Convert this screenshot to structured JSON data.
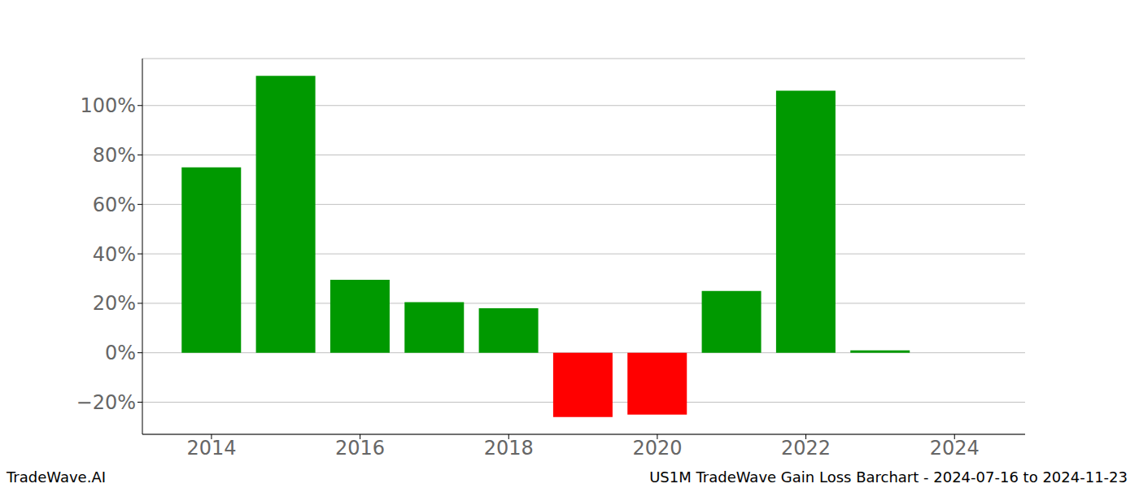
{
  "chart_data": {
    "type": "bar",
    "title": "US1M TradeWave Gain Loss Barchart - 2024-07-16 to 2024-11-23",
    "annotations": [
      "TradeWave.AI"
    ],
    "x": [
      2014,
      2015,
      2016,
      2017,
      2018,
      2019,
      2020,
      2021,
      2022,
      2023
    ],
    "values": [
      75,
      112,
      29.5,
      20.5,
      18,
      -26,
      -25,
      25,
      106,
      1
    ],
    "colors": [
      "#009900",
      "#009900",
      "#009900",
      "#009900",
      "#009900",
      "#ff0000",
      "#ff0000",
      "#009900",
      "#009900",
      "#009900"
    ],
    "xlim": [
      2013.07,
      2024.95
    ],
    "xticks": [
      2014,
      2016,
      2018,
      2020,
      2022,
      2024
    ],
    "ylim": [
      -33,
      119
    ],
    "yticks": [
      {
        "value": -20,
        "label": "−20%"
      },
      {
        "value": 0,
        "label": "0%"
      },
      {
        "value": 20,
        "label": "20%"
      },
      {
        "value": 40,
        "label": "40%"
      },
      {
        "value": 60,
        "label": "60%"
      },
      {
        "value": 80,
        "label": "80%"
      },
      {
        "value": 100,
        "label": "100%"
      }
    ],
    "grid": true
  }
}
